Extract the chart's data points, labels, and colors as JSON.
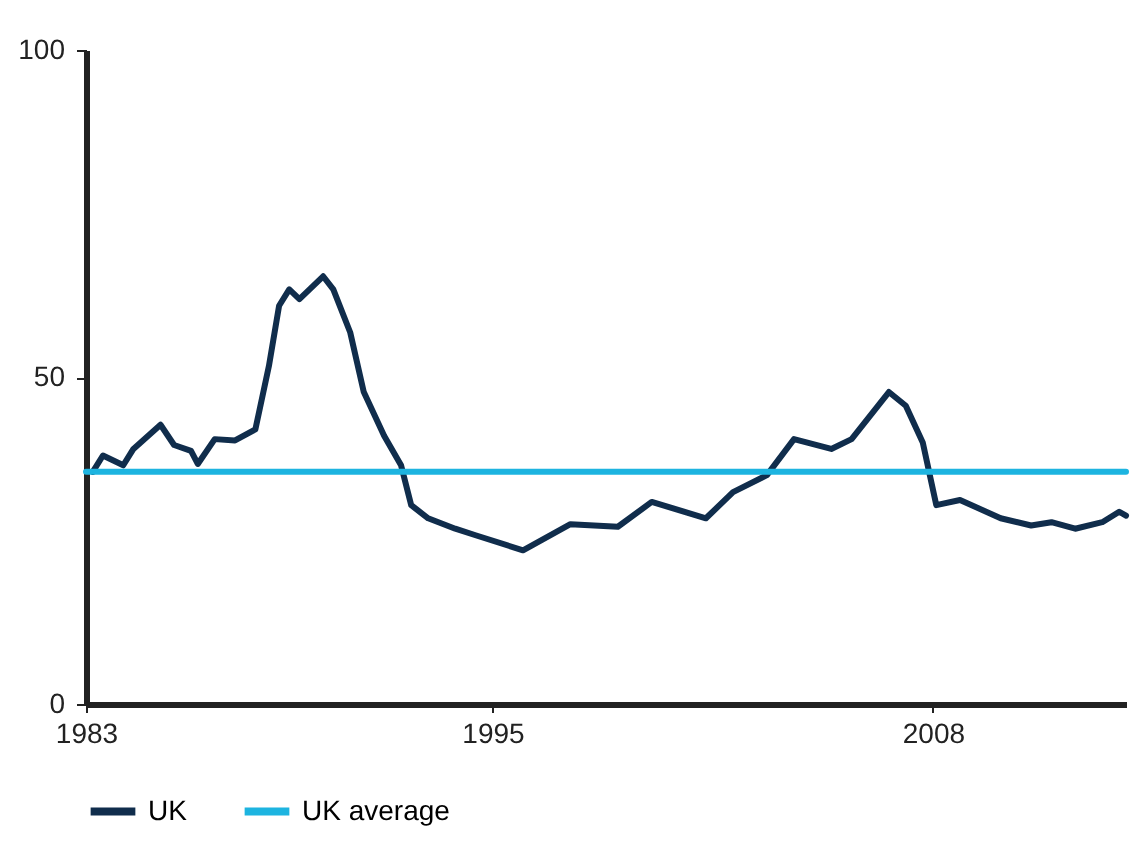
{
  "chart_data": {
    "type": "line",
    "xlim": [
      1983,
      2013.7
    ],
    "xticks": [
      1983,
      1995,
      2008
    ],
    "ylim": [
      0,
      100
    ],
    "yticks": [
      0,
      50,
      100
    ],
    "grid": false,
    "legend": "bottom",
    "marker": "none",
    "line_style": "solid",
    "series": [
      {
        "name": "UK",
        "color": "#102d4c",
        "x": [
          1983.2,
          1983.5,
          1984.1,
          1984.4,
          1985.2,
          1985.6,
          1986.1,
          1986.3,
          1986.8,
          1987.4,
          1988.0,
          1988.4,
          1988.7,
          1989.0,
          1989.3,
          1990.0,
          1990.3,
          1990.8,
          1991.2,
          1991.8,
          1992.3,
          1992.6,
          1993.1,
          1993.9,
          1994.5,
          1995.9,
          1997.3,
          1998.7,
          1999.7,
          2001.3,
          2002.1,
          2003.1,
          2003.9,
          2005.0,
          2005.6,
          2006.7,
          2007.2,
          2007.7,
          2008.1,
          2008.8,
          2010.0,
          2010.9,
          2011.5,
          2012.2,
          2013.0,
          2013.5,
          2013.7
        ],
        "values": [
          35.5,
          38,
          36.5,
          39,
          42.7,
          39.6,
          38.7,
          36.7,
          40.5,
          40.3,
          42,
          51.7,
          60.9,
          63.4,
          61.9,
          65.4,
          63.4,
          56.8,
          47.7,
          41,
          36.5,
          30.4,
          28.4,
          26.8,
          25.8,
          23.5,
          27.5,
          27.1,
          30.9,
          28.4,
          32.4,
          35,
          40.5,
          39,
          40.5,
          47.7,
          45.6,
          40,
          30.4,
          31.2,
          28.4,
          27.3,
          27.8,
          26.8,
          27.8,
          29.4,
          28.8
        ]
      },
      {
        "name": "UK average",
        "color": "#1db4e0",
        "x": [
          1983,
          2013.7
        ],
        "values": [
          35.5,
          35.5
        ]
      }
    ]
  }
}
